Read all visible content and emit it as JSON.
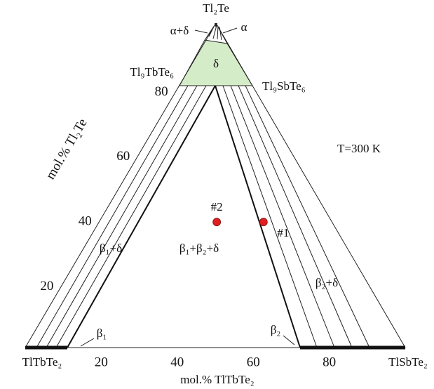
{
  "vertices": {
    "top": "Tl₂Te",
    "left": "TlTbTe₂",
    "right": "TlSbTe₂"
  },
  "compounds": {
    "left": "Tl₉TbTe₆",
    "right": "Tl₉SbTe₆"
  },
  "regions": {
    "delta": "δ",
    "alpha": "α",
    "alpha_delta": "α+δ",
    "beta1_delta": "β₁+δ",
    "beta1_beta2_delta": "β₁+β₂+δ",
    "beta2_delta": "β₂+δ",
    "beta1": "β₁",
    "beta2": "β₂"
  },
  "temperature": "T=300 K",
  "left_axis": {
    "label": "mol.% Tl₂Te",
    "ticks": [
      20,
      40,
      60,
      80
    ]
  },
  "bottom_axis": {
    "label": "mol.% TlTbTe₂",
    "ticks": [
      20,
      40,
      60,
      80
    ]
  },
  "points": [
    {
      "label": "#1",
      "x": 62.7,
      "y": 38.7
    },
    {
      "label": "#2",
      "x": 50.4,
      "y": 38.7
    }
  ]
}
